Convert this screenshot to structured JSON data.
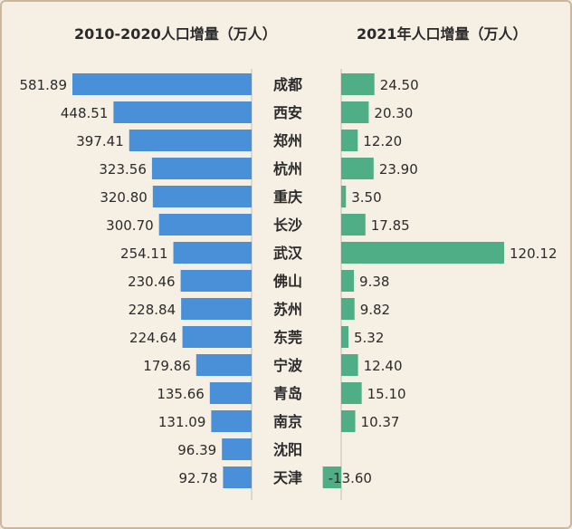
{
  "chart_data": [
    {
      "type": "bar",
      "orientation": "horizontal",
      "title": "2010-2020人口增量（万人）",
      "categories": [
        "成都",
        "西安",
        "郑州",
        "杭州",
        "重庆",
        "长沙",
        "武汉",
        "佛山",
        "苏州",
        "东莞",
        "宁波",
        "青岛",
        "南京",
        "沈阳",
        "天津"
      ],
      "values": [
        581.89,
        448.51,
        397.41,
        323.56,
        320.8,
        300.7,
        254.11,
        230.46,
        228.84,
        224.64,
        179.86,
        135.66,
        131.09,
        96.39,
        92.78
      ],
      "value_labels": [
        "581.89",
        "448.51",
        "397.41",
        "323.56",
        "320.80",
        "300.70",
        "254.11",
        "230.46",
        "228.84",
        "224.64",
        "179.86",
        "135.66",
        "131.09",
        "96.39",
        "92.78"
      ],
      "color": "#4a90d9"
    },
    {
      "type": "bar",
      "orientation": "horizontal",
      "title": "2021年人口增量（万人）",
      "categories": [
        "成都",
        "西安",
        "郑州",
        "杭州",
        "重庆",
        "长沙",
        "武汉",
        "佛山",
        "苏州",
        "东莞",
        "宁波",
        "青岛",
        "南京",
        "沈阳",
        "天津"
      ],
      "values": [
        24.5,
        20.3,
        12.2,
        23.9,
        3.5,
        17.85,
        120.12,
        9.38,
        9.82,
        5.32,
        12.4,
        15.1,
        10.37,
        null,
        -13.6
      ],
      "value_labels": [
        "24.50",
        "20.30",
        "12.20",
        "23.90",
        "3.50",
        "17.85",
        "120.12",
        "9.38",
        "9.82",
        "5.32",
        "12.40",
        "15.10",
        "10.37",
        "",
        "-13.60"
      ],
      "color": "#4fae86"
    }
  ]
}
